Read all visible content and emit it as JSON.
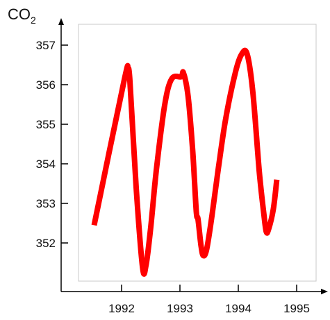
{
  "chart_data": {
    "type": "line",
    "title": "",
    "ylabel_main": "CO",
    "ylabel_sub": "2",
    "xlabel": "",
    "grid": false,
    "line_color": "#ff0000",
    "frame_color": "#c8c8c8",
    "x_ticks": [
      {
        "value": 1992,
        "label": "1992"
      },
      {
        "value": 1993,
        "label": "1993"
      },
      {
        "value": 1994,
        "label": "1994"
      },
      {
        "value": 1995,
        "label": "1995"
      }
    ],
    "y_ticks": [
      {
        "value": 352,
        "label": "352"
      },
      {
        "value": 353,
        "label": "353"
      },
      {
        "value": 354,
        "label": "354"
      },
      {
        "value": 355,
        "label": "355"
      },
      {
        "value": 356,
        "label": "356"
      },
      {
        "value": 357,
        "label": "357"
      }
    ],
    "series": [
      {
        "points": [
          [
            1991.53,
            352.45
          ],
          [
            1992.05,
            356.15
          ],
          [
            1992.1,
            356.3
          ],
          [
            1992.14,
            356.15
          ],
          [
            1992.25,
            353.4
          ],
          [
            1992.36,
            351.38
          ],
          [
            1992.42,
            351.45
          ],
          [
            1992.5,
            352.4
          ],
          [
            1992.6,
            353.9
          ],
          [
            1992.74,
            355.5
          ],
          [
            1992.86,
            356.15
          ],
          [
            1993.02,
            356.2
          ],
          [
            1993.06,
            356.3
          ],
          [
            1993.14,
            355.7
          ],
          [
            1993.22,
            354.3
          ],
          [
            1993.28,
            352.8
          ],
          [
            1993.31,
            352.6
          ],
          [
            1993.36,
            351.95
          ],
          [
            1993.4,
            351.68
          ],
          [
            1993.46,
            351.85
          ],
          [
            1993.55,
            352.7
          ],
          [
            1993.66,
            353.9
          ],
          [
            1993.78,
            355.1
          ],
          [
            1993.94,
            356.25
          ],
          [
            1994.05,
            356.75
          ],
          [
            1994.15,
            356.78
          ],
          [
            1994.25,
            355.8
          ],
          [
            1994.36,
            353.8
          ],
          [
            1994.44,
            352.7
          ],
          [
            1994.48,
            352.28
          ],
          [
            1994.52,
            352.35
          ],
          [
            1994.6,
            352.85
          ],
          [
            1994.66,
            353.6
          ]
        ]
      }
    ]
  }
}
